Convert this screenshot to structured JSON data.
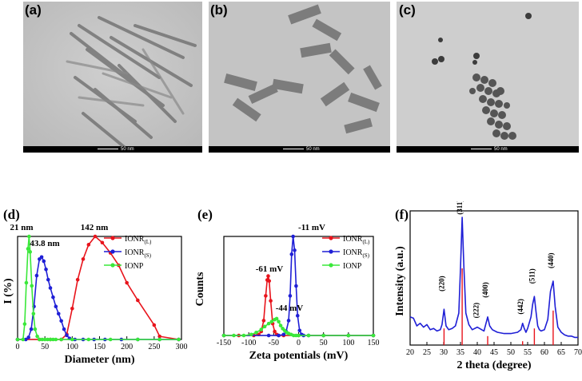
{
  "panels": {
    "a": {
      "label": "(a)",
      "scale": "50 nm"
    },
    "b": {
      "label": "(b)",
      "scale": "50 nm"
    },
    "c": {
      "label": "(c)",
      "scale": "50 nm"
    }
  },
  "chart_data": [
    {
      "id": "d",
      "label": "(d)",
      "type": "line",
      "xlabel": "Diameter (nm)",
      "ylabel": "I (%)",
      "xlim": [
        0,
        300
      ],
      "xticks": [
        "0",
        "50",
        "100",
        "150",
        "200",
        "250",
        "300"
      ],
      "yticks": [],
      "legend_position": "top-right",
      "annotations": [
        "21 nm",
        "43.8 nm",
        "142 nm"
      ],
      "series": [
        {
          "name": "IONR",
          "subscript": "(L)",
          "color": "#e8141c",
          "x": [
            0,
            40,
            60,
            80,
            90,
            100,
            110,
            120,
            130,
            142,
            155,
            170,
            185,
            200,
            220,
            250,
            260,
            295
          ],
          "y": [
            0,
            0,
            0,
            0,
            5,
            30,
            58,
            78,
            92,
            100,
            94,
            84,
            72,
            55,
            38,
            14,
            3,
            0
          ]
        },
        {
          "name": "IONR",
          "subscript": "(S)",
          "color": "#1f1fd6",
          "x": [
            0,
            15,
            20,
            25,
            30,
            35,
            40,
            44,
            48,
            52,
            56,
            60,
            65,
            70,
            75,
            80,
            85,
            90,
            95,
            105,
            120,
            140,
            160,
            190,
            220,
            260,
            295
          ],
          "y": [
            0,
            0,
            2,
            10,
            32,
            62,
            78,
            80,
            76,
            68,
            58,
            50,
            41,
            32,
            25,
            18,
            10,
            4,
            1,
            0,
            0,
            0,
            0,
            0,
            0,
            0,
            0
          ]
        },
        {
          "name": "IONP",
          "subscript": "",
          "color": "#3ae83a",
          "x": [
            0,
            10,
            13,
            16,
            19,
            21,
            23,
            26,
            29,
            32,
            36,
            40,
            45,
            50,
            55,
            60,
            65,
            70,
            80,
            100,
            130,
            170,
            220,
            260,
            295
          ],
          "y": [
            0,
            0,
            15,
            55,
            88,
            100,
            85,
            52,
            25,
            10,
            3,
            0,
            0,
            0,
            0,
            0,
            0,
            0,
            0,
            0,
            0,
            0,
            0,
            0,
            0
          ]
        }
      ]
    },
    {
      "id": "e",
      "label": "(e)",
      "type": "line",
      "xlabel": "Zeta potentials (mV)",
      "ylabel": "Counts",
      "xlim": [
        -150,
        150
      ],
      "xticks": [
        "-150",
        "-100",
        "-50",
        "0",
        "50",
        "100",
        "150"
      ],
      "yticks": [],
      "legend_position": "top-right",
      "annotations": [
        "-61 mV",
        "-11 mV",
        "-44 mV"
      ],
      "series": [
        {
          "name": "IONR",
          "subscript": "(L)",
          "color": "#e8141c",
          "x": [
            -150,
            -120,
            -90,
            -80,
            -75,
            -70,
            -66,
            -63,
            -61,
            -59,
            -56,
            -52,
            -48,
            -44,
            -40,
            -30,
            0,
            50,
            100,
            150
          ],
          "y": [
            0,
            0,
            0,
            1,
            4,
            15,
            40,
            56,
            60,
            55,
            35,
            12,
            4,
            1,
            0,
            0,
            0,
            0,
            0,
            0
          ]
        },
        {
          "name": "IONR",
          "subscript": "(S)",
          "color": "#1f1fd6",
          "x": [
            -150,
            -60,
            -40,
            -30,
            -25,
            -20,
            -17,
            -14,
            -11,
            -8,
            -5,
            -2,
            2,
            6,
            10,
            20,
            50,
            100,
            150
          ],
          "y": [
            0,
            0,
            0,
            1,
            4,
            15,
            40,
            82,
            100,
            86,
            50,
            20,
            5,
            1,
            0,
            0,
            0,
            0,
            0
          ]
        },
        {
          "name": "IONP",
          "subscript": "",
          "color": "#3ae83a",
          "x": [
            -150,
            -130,
            -110,
            -95,
            -85,
            -75,
            -68,
            -60,
            -54,
            -48,
            -44,
            -40,
            -36,
            -32,
            -28,
            -24,
            -20,
            -15,
            -10,
            -5,
            0,
            20,
            50,
            100,
            150
          ],
          "y": [
            0,
            0,
            0,
            1,
            3,
            6,
            9,
            12,
            14,
            16,
            17,
            14,
            10,
            7,
            5,
            3,
            2,
            1,
            0,
            0,
            0,
            0,
            0,
            0,
            0
          ]
        }
      ]
    },
    {
      "id": "f",
      "label": "(f)",
      "type": "line",
      "xlabel": "2 theta (degree)",
      "ylabel": "Intensity (a.u.)",
      "xlim": [
        20,
        70
      ],
      "xticks": [
        "20",
        "25",
        "30",
        "35",
        "40",
        "45",
        "50",
        "55",
        "60",
        "65",
        "70"
      ],
      "yticks": [],
      "annotations": [
        "(220)",
        "(311)",
        "(222)",
        "(400)",
        "(442)",
        "(511)",
        "(440)"
      ],
      "series": [
        {
          "name": "",
          "color": "#1f1fd6",
          "x": [
            20,
            21,
            22,
            23,
            24,
            25,
            26,
            27,
            28,
            29,
            29.5,
            30.1,
            30.7,
            31.5,
            32.5,
            33.5,
            34.5,
            35.0,
            35.5,
            36.0,
            36.6,
            37.5,
            38.5,
            40,
            42,
            42.5,
            43.1,
            43.7,
            44.5,
            46,
            48,
            50,
            52,
            53,
            53.5,
            54,
            54.5,
            55,
            56,
            56.5,
            57.0,
            57.5,
            58,
            58.5,
            59,
            60,
            61,
            61.8,
            62.6,
            63.2,
            64,
            65,
            66,
            67,
            68,
            69,
            70
          ],
          "y": [
            22,
            21,
            15,
            17,
            14,
            16,
            12,
            13,
            11,
            12,
            16,
            28,
            15,
            12,
            13,
            15,
            25,
            60,
            100,
            62,
            25,
            16,
            12,
            14,
            11,
            16,
            22,
            15,
            12,
            10,
            9,
            9,
            10,
            12,
            17,
            13,
            10,
            13,
            22,
            32,
            38,
            26,
            15,
            12,
            11,
            12,
            20,
            42,
            50,
            30,
            14,
            10,
            8,
            7,
            7,
            6,
            6
          ]
        }
      ],
      "reference_lines": {
        "color": "#e8141c",
        "x": [
          30.1,
          35.5,
          43.1,
          53.5,
          57.0,
          62.6
        ],
        "height": [
          13,
          60,
          7,
          3,
          13,
          27
        ]
      }
    }
  ]
}
